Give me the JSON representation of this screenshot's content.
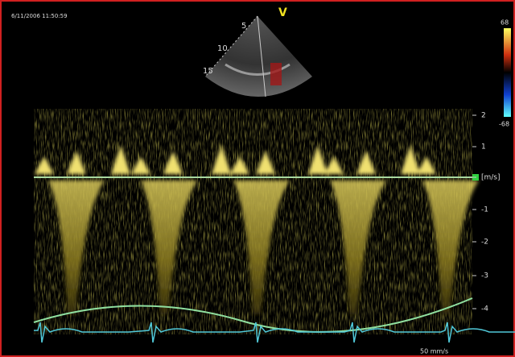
{
  "header": {
    "timestamp": "6/11/2006 11:50:59"
  },
  "probe": {
    "marker": "V",
    "depth_labels": [
      "5",
      "10",
      "15"
    ]
  },
  "color_scale": {
    "max_label": "68",
    "min_label": "-68"
  },
  "velocity_scale": {
    "labels": [
      "2",
      "1",
      "[m/s]",
      "-1",
      "-2",
      "-3",
      "-4"
    ]
  },
  "sweep_speed": "50 mm/s"
}
